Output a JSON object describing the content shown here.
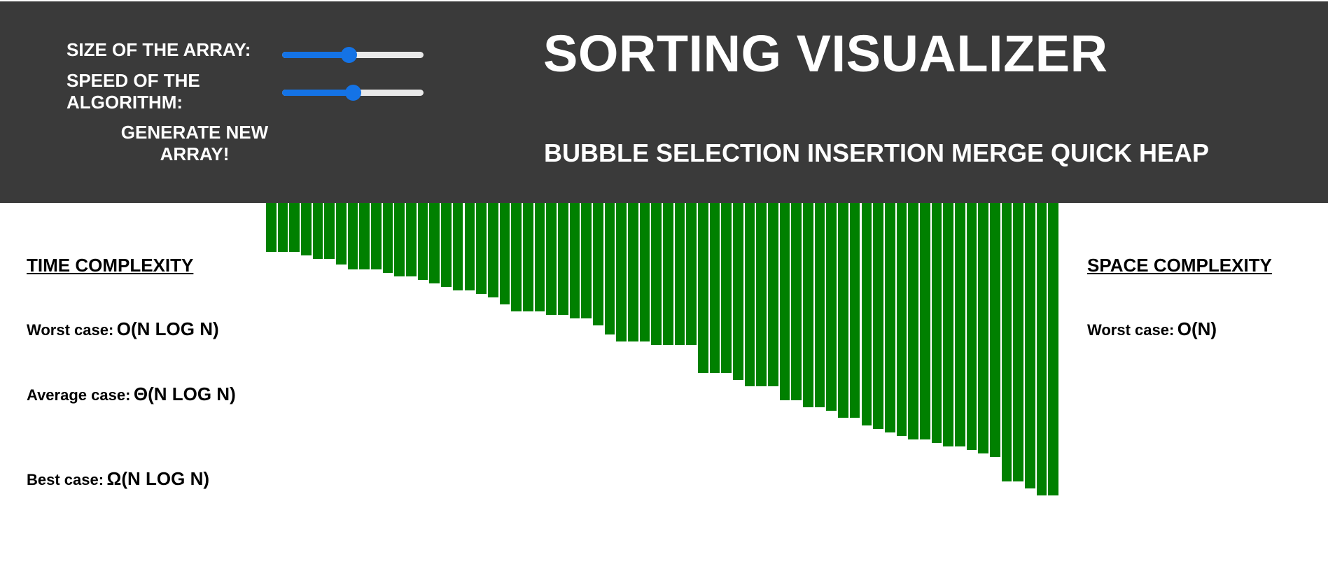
{
  "controls": {
    "size_label": "SIZE OF THE ARRAY:",
    "size_value_pct": 47,
    "speed_label": "SPEED OF THE ALGORITHM:",
    "speed_value_pct": 50,
    "generate_label": "GENERATE NEW ARRAY!"
  },
  "title": "SORTING VISUALIZER",
  "algorithms": [
    "BUBBLE",
    "SELECTION",
    "INSERTION",
    "MERGE",
    "QUICK",
    "HEAP"
  ],
  "bar_color": "#008000",
  "bar_values": [
    70,
    70,
    70,
    75,
    80,
    80,
    88,
    95,
    95,
    95,
    100,
    105,
    105,
    110,
    115,
    120,
    125,
    125,
    130,
    135,
    145,
    155,
    155,
    155,
    160,
    160,
    165,
    165,
    175,
    188,
    198,
    198,
    198,
    203,
    203,
    203,
    203,
    243,
    243,
    243,
    253,
    262,
    262,
    262,
    282,
    282,
    292,
    292,
    297,
    307,
    307,
    318,
    323,
    328,
    333,
    338,
    338,
    343,
    348,
    348,
    353,
    358,
    363,
    398,
    398,
    408,
    418,
    418
  ],
  "bar_max": 430,
  "time_complexity": {
    "heading": "TIME COMPLEXITY",
    "worst_label": "Worst case:",
    "worst_value": "O(N LOG N)",
    "average_label": "Average case:",
    "average_value": "Θ(N LOG N)",
    "best_label": "Best case:",
    "best_value": "Ω(N LOG N)"
  },
  "space_complexity": {
    "heading": "SPACE COMPLEXITY",
    "worst_label": "Worst case:",
    "worst_value": "O(N)"
  }
}
